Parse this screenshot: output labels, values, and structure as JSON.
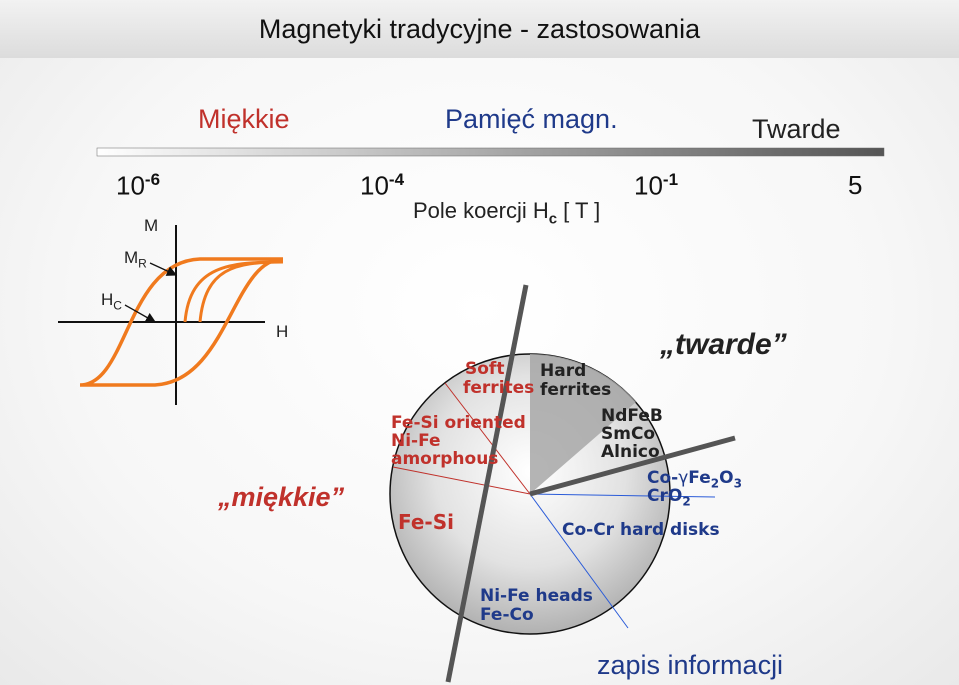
{
  "title": "Magnetyki tradycyjne - zastosowania",
  "categories": {
    "soft": "Miękkie",
    "memory": "Pamięć magn.",
    "hard": "Twarde"
  },
  "scale": [
    {
      "base": "10",
      "exp": "-6"
    },
    {
      "base": "10",
      "exp": "-4"
    },
    {
      "base": "10",
      "exp": "-1"
    },
    {
      "value": "5"
    }
  ],
  "axis_label": {
    "text": "Pole koercji H",
    "sub": "c",
    "unit": " [ T ]"
  },
  "hysteresis": {
    "m_label": "M",
    "mr_label": {
      "base": "M",
      "sub": "R"
    },
    "hc_label": {
      "base": "H",
      "sub": "C"
    },
    "h_label": "H"
  },
  "pie": {
    "soft_ferrites": [
      "Soft",
      "ferrites"
    ],
    "hard_ferrites": [
      "Hard",
      "ferrites"
    ],
    "fesi_oriented": [
      "Fe-Si oriented",
      "Ni-Fe",
      "amorphous"
    ],
    "fesi": "Fe-Si",
    "ndfeb": [
      "NdFeB",
      "SmCo",
      "Alnico"
    ],
    "co_fe2o3": {
      "pre": "Co-",
      "gamma": "γ",
      "fe": "Fe",
      "s2": "2",
      "o": "O",
      "s3": "3"
    },
    "cro2": {
      "base": "CrO",
      "sub": "2"
    },
    "cocr": "Co-Cr hard disks",
    "nife_heads": [
      "Ni-Fe heads",
      "Fe-Co"
    ]
  },
  "labels": {
    "twarde": "„twarde”",
    "miekkie": "„miękkie”",
    "zapis": "zapis informacji"
  },
  "colors": {
    "soft_red": "#c0312b",
    "memory_navy": "#1f3a8a",
    "loop_orange": "#f07a1e"
  }
}
